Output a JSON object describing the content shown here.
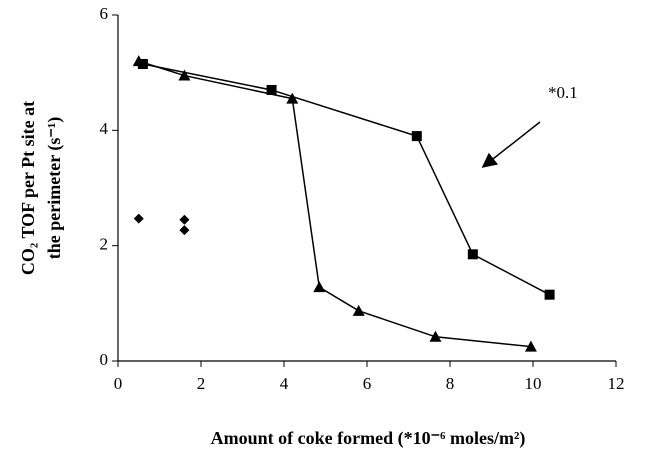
{
  "chart_data": {
    "type": "line",
    "y_label": [
      "CO₂ TOF per Pt site at",
      "the perimeter (s⁻¹)"
    ],
    "x_label": "Amount of coke formed (*10⁻⁶ moles/m²)",
    "annotation": "*0.1",
    "xlim": [
      0,
      12
    ],
    "xticks": [
      0,
      2,
      4,
      6,
      8,
      10,
      12
    ],
    "ylim": [
      0,
      6
    ],
    "yticks": [
      0,
      2,
      4,
      6
    ],
    "grid": false,
    "series": [
      {
        "marker": "square",
        "color": "#000000",
        "line": true,
        "x": [
          0.6,
          3.7,
          7.2,
          8.55,
          10.4
        ],
        "values": [
          5.15,
          4.7,
          3.9,
          1.85,
          1.15
        ]
      },
      {
        "marker": "triangle",
        "color": "#000000",
        "line": true,
        "x": [
          0.5,
          1.6,
          4.2,
          4.85,
          5.8,
          7.65,
          9.95
        ],
        "values": [
          5.2,
          4.95,
          4.55,
          1.28,
          0.87,
          0.42,
          0.25
        ]
      },
      {
        "marker": "diamond",
        "color": "#000000",
        "line": false,
        "x": [
          0.5,
          1.6,
          1.6
        ],
        "values": [
          2.47,
          2.45,
          2.27
        ]
      }
    ]
  }
}
